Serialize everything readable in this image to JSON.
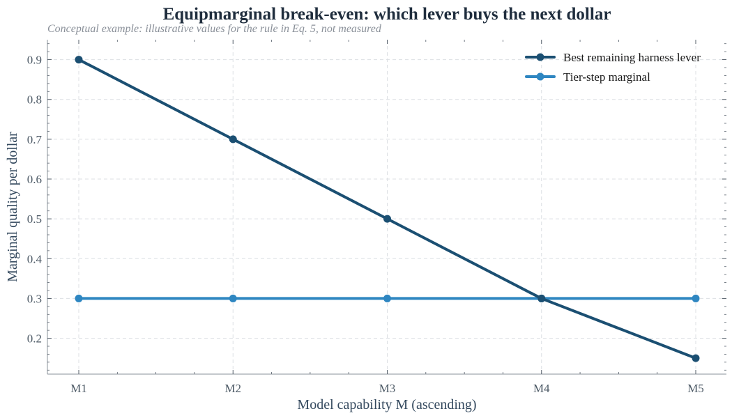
{
  "chart_data": {
    "type": "line",
    "title": "Equipmarginal break-even: which lever buys the next dollar",
    "subtitle": "Conceptual example: illustrative values for the rule in Eq. 5, not measured",
    "xlabel": "Model capability M (ascending)",
    "ylabel": "Marginal quality per dollar",
    "categories": [
      "M1",
      "M2",
      "M3",
      "M4",
      "M5"
    ],
    "ylim": [
      0.11,
      0.95
    ],
    "yticks": [
      "0.2",
      "0.3",
      "0.4",
      "0.5",
      "0.6",
      "0.7",
      "0.8",
      "0.9"
    ],
    "grid": true,
    "legend_position": "top-right",
    "series": [
      {
        "name": "Best remaining harness lever",
        "values": [
          0.9,
          0.7,
          0.5,
          0.3,
          0.15
        ],
        "color": "#1b4f72"
      },
      {
        "name": "Tier-step marginal",
        "values": [
          0.3,
          0.3,
          0.3,
          0.3,
          0.3
        ],
        "color": "#2e86c1"
      }
    ]
  }
}
